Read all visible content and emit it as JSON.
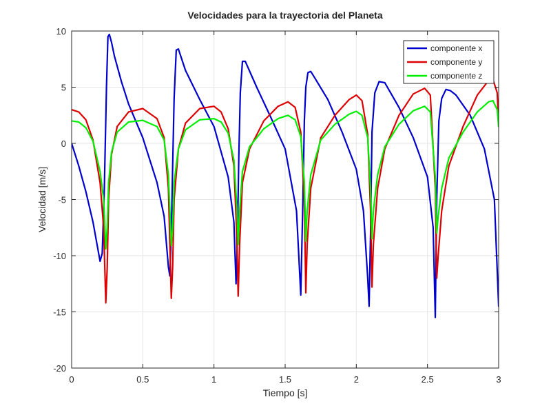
{
  "chart_data": {
    "type": "line",
    "title": "Velocidades para la trayectoria del Planeta",
    "xlabel": "Tiempo [s]",
    "ylabel": "Velocidad [m/s]",
    "xlim": [
      0,
      3
    ],
    "ylim": [
      -20,
      10
    ],
    "xticks": [
      0,
      0.5,
      1,
      1.5,
      2,
      2.5,
      3
    ],
    "yticks": [
      -20,
      -15,
      -10,
      -5,
      0,
      5,
      10
    ],
    "xtick_labels": [
      "0",
      "0.5",
      "1",
      "1.5",
      "2",
      "2.5",
      "3"
    ],
    "ytick_labels": [
      "-20",
      "-15",
      "-10",
      "-5",
      "0",
      "5",
      "10"
    ],
    "grid": true,
    "legend_position": "top-right",
    "series": [
      {
        "name": "componente x",
        "color": "#0000cc",
        "x": [
          0,
          0.05,
          0.1,
          0.15,
          0.2,
          0.215,
          0.23,
          0.245,
          0.255,
          0.265,
          0.28,
          0.3,
          0.35,
          0.4,
          0.5,
          0.6,
          0.65,
          0.68,
          0.69,
          0.7,
          0.71,
          0.72,
          0.735,
          0.75,
          0.8,
          0.9,
          1.0,
          1.1,
          1.14,
          1.155,
          1.165,
          1.175,
          1.185,
          1.2,
          1.22,
          1.3,
          1.4,
          1.5,
          1.58,
          1.61,
          1.625,
          1.635,
          1.645,
          1.66,
          1.68,
          1.7,
          1.8,
          1.9,
          2.0,
          2.05,
          2.08,
          2.09,
          2.1,
          2.11,
          2.13,
          2.16,
          2.2,
          2.3,
          2.4,
          2.5,
          2.54,
          2.555,
          2.565,
          2.58,
          2.6,
          2.63,
          2.66,
          2.7,
          2.8,
          2.9,
          2.97,
          3.0
        ],
        "y": [
          0,
          -2,
          -4.3,
          -7,
          -10.5,
          -9.8,
          -4,
          5,
          9.5,
          9.7,
          9,
          7.8,
          5.5,
          3.5,
          0.5,
          -3.5,
          -6.5,
          -11,
          -11.8,
          -8,
          -2,
          4,
          8.3,
          8.4,
          6.5,
          3.9,
          1.5,
          -3,
          -7,
          -12.5,
          -8,
          -1,
          4.5,
          7.3,
          7.3,
          5,
          2.3,
          -0.5,
          -6,
          -13.5,
          -5,
          2,
          5,
          6.3,
          6.4,
          6,
          3.9,
          1,
          -2.3,
          -6,
          -12,
          -14.5,
          -8,
          1,
          4.5,
          5.5,
          5.4,
          3.2,
          0.5,
          -3,
          -7.5,
          -15.5,
          -5,
          2,
          4,
          4.8,
          4.7,
          4.3,
          2.5,
          -0.5,
          -5,
          -14.5
        ]
      },
      {
        "name": "componente y",
        "color": "#dd0000",
        "x": [
          0,
          0.05,
          0.1,
          0.15,
          0.2,
          0.225,
          0.24,
          0.25,
          0.26,
          0.28,
          0.32,
          0.4,
          0.5,
          0.6,
          0.65,
          0.68,
          0.7,
          0.71,
          0.72,
          0.75,
          0.8,
          0.9,
          1.0,
          1.05,
          1.1,
          1.14,
          1.16,
          1.17,
          1.18,
          1.2,
          1.25,
          1.35,
          1.45,
          1.52,
          1.57,
          1.61,
          1.635,
          1.645,
          1.655,
          1.68,
          1.75,
          1.85,
          1.95,
          2.0,
          2.04,
          2.08,
          2.1,
          2.11,
          2.12,
          2.15,
          2.2,
          2.3,
          2.4,
          2.48,
          2.52,
          2.555,
          2.565,
          2.575,
          2.6,
          2.65,
          2.75,
          2.85,
          2.93,
          2.96,
          2.99,
          3.0
        ],
        "y": [
          3,
          2.8,
          2.1,
          0.3,
          -3.5,
          -7.5,
          -14.2,
          -11,
          -5,
          -1,
          1.5,
          2.8,
          3.1,
          2.2,
          0.5,
          -4,
          -13.8,
          -11,
          -5,
          -0.5,
          1.8,
          3.1,
          3.3,
          2.8,
          1.3,
          -2,
          -8,
          -13.6,
          -9,
          -3.5,
          -0.5,
          2,
          3.3,
          3.7,
          3.2,
          1,
          -5,
          -13.3,
          -9,
          -4,
          0.5,
          2.5,
          3.9,
          4.3,
          3.8,
          0.8,
          -6,
          -12.8,
          -9,
          -4,
          -0.5,
          2.5,
          4.4,
          4.9,
          4.3,
          -4,
          -12,
          -10,
          -6,
          -2,
          1.5,
          4.3,
          5.6,
          5.7,
          4.5,
          1.5
        ]
      },
      {
        "name": "componente z",
        "color": "#00ee00",
        "x": [
          0,
          0.05,
          0.1,
          0.15,
          0.2,
          0.225,
          0.24,
          0.25,
          0.26,
          0.28,
          0.32,
          0.4,
          0.5,
          0.6,
          0.65,
          0.68,
          0.7,
          0.71,
          0.72,
          0.75,
          0.8,
          0.9,
          1.0,
          1.05,
          1.1,
          1.14,
          1.16,
          1.17,
          1.18,
          1.2,
          1.25,
          1.35,
          1.45,
          1.52,
          1.57,
          1.61,
          1.635,
          1.645,
          1.655,
          1.68,
          1.75,
          1.85,
          1.95,
          2.0,
          2.04,
          2.08,
          2.1,
          2.11,
          2.12,
          2.15,
          2.2,
          2.3,
          2.4,
          2.48,
          2.52,
          2.555,
          2.565,
          2.575,
          2.6,
          2.65,
          2.75,
          2.85,
          2.93,
          2.96,
          2.99,
          3.0
        ],
        "y": [
          2,
          1.9,
          1.4,
          0.2,
          -2.5,
          -5,
          -9.4,
          -7.5,
          -3.5,
          -0.8,
          1,
          1.9,
          2.05,
          1.5,
          0.3,
          -2.8,
          -9.1,
          -7.5,
          -3.5,
          -0.5,
          1.2,
          2.1,
          2.2,
          1.9,
          0.9,
          -1.5,
          -5.5,
          -9,
          -6,
          -2.5,
          -0.3,
          1.3,
          2.2,
          2.5,
          2.1,
          0.6,
          -3.5,
          -8.7,
          -6,
          -2.8,
          0.3,
          1.7,
          2.6,
          2.85,
          2.5,
          0.5,
          -4,
          -8.5,
          -6,
          -2.8,
          -0.3,
          1.7,
          2.9,
          3.3,
          2.8,
          -3,
          -8,
          -6.5,
          -4,
          -1.3,
          1,
          2.8,
          3.7,
          3.8,
          3,
          1.5
        ]
      }
    ]
  }
}
